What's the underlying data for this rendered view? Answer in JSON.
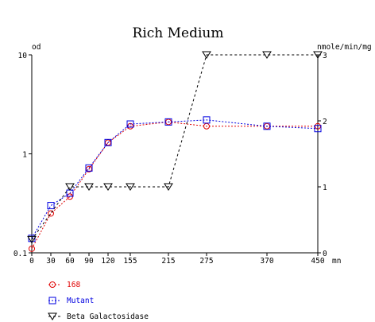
{
  "chart_data": {
    "type": "line",
    "title": "Rich Medium",
    "left_axis": {
      "label": "od",
      "scale": "log",
      "range": [
        0.1,
        10
      ],
      "ticks": [
        {
          "value": 10,
          "label": "10"
        },
        {
          "value": 1,
          "label": "1"
        },
        {
          "value": 0.1,
          "label": "0.1"
        }
      ]
    },
    "right_axis": {
      "label": "nmole/min/mg",
      "scale": "linear",
      "range": [
        0,
        3
      ],
      "ticks": [
        {
          "value": 3,
          "label": "3"
        },
        {
          "value": 2,
          "label": "2"
        },
        {
          "value": 1,
          "label": "1"
        },
        {
          "value": 0,
          "label": "0"
        }
      ]
    },
    "x_axis": {
      "unit_label": "mn",
      "range": [
        0,
        450
      ],
      "ticks": [
        {
          "value": 0,
          "label": "0"
        },
        {
          "value": 30,
          "label": "30"
        },
        {
          "value": 60,
          "label": "60"
        },
        {
          "value": 90,
          "label": "90"
        },
        {
          "value": 120,
          "label": "120"
        },
        {
          "value": 155,
          "label": "155"
        },
        {
          "value": 215,
          "label": "215"
        },
        {
          "value": 275,
          "label": "275"
        },
        {
          "value": 370,
          "label": "370"
        },
        {
          "value": 450,
          "label": "450"
        }
      ]
    },
    "grid": false,
    "legend_position": "bottom-left",
    "series": [
      {
        "name": "168",
        "axis": "left",
        "color": "#e00000",
        "marker": "circle",
        "line_style": "dotted",
        "x": [
          0,
          30,
          60,
          90,
          120,
          155,
          215,
          275,
          370,
          450
        ],
        "y": [
          0.11,
          0.25,
          0.37,
          0.7,
          1.3,
          1.9,
          2.1,
          1.9,
          1.9,
          1.9
        ]
      },
      {
        "name": "Mutant",
        "axis": "left",
        "color": "#0000e0",
        "marker": "square",
        "line_style": "dotted",
        "x": [
          0,
          30,
          60,
          90,
          120,
          155,
          215,
          275,
          370,
          450
        ],
        "y": [
          0.14,
          0.3,
          0.4,
          0.72,
          1.3,
          2.0,
          2.1,
          2.2,
          1.9,
          1.8
        ]
      },
      {
        "name": "Beta Galactosidase",
        "axis": "right",
        "color": "#000000",
        "marker": "triangle-down",
        "line_style": "dashed",
        "x": [
          0,
          60,
          90,
          120,
          155,
          215,
          275,
          370,
          450
        ],
        "y": [
          0.2,
          1.0,
          1.0,
          1.0,
          1.0,
          1.0,
          3.0,
          3.0,
          3.0
        ]
      }
    ]
  }
}
